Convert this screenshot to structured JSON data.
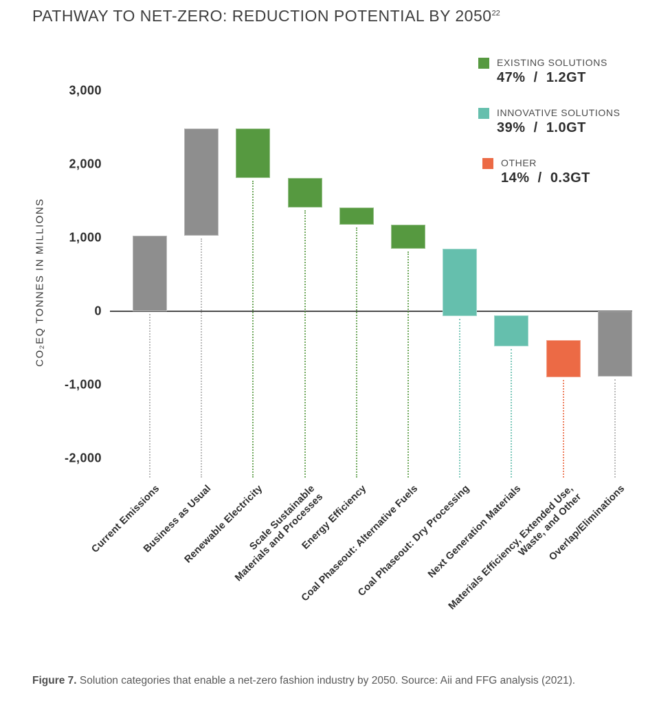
{
  "title": {
    "text": "PATHWAY TO NET-ZERO: REDUCTION POTENTIAL BY 2050",
    "superscript": "22"
  },
  "colors": {
    "existing": "#569940",
    "innovative": "#65BFAD",
    "other": "#EC6A45",
    "neutral": "#8E8E8E",
    "neutral_dots": "#ADADAD",
    "axis": "#4A4A4A"
  },
  "legend": {
    "items": [
      {
        "name": "EXISTING SOLUTIONS",
        "value": "47%  /  1.2GT",
        "color_key": "existing"
      },
      {
        "name": "INNOVATIVE SOLUTIONS",
        "value": "39%  /  1.0GT",
        "color_key": "innovative"
      },
      {
        "name": "OTHER",
        "value": "14%  /  0.3GT",
        "color_key": "other"
      }
    ]
  },
  "y_axis": {
    "label": "CO₂EQ TONNES IN MILLIONS",
    "ticks": [
      "3,000",
      "2,000",
      "1,000",
      "0",
      "-1,000",
      "-2,000"
    ],
    "tick_values": [
      3000,
      2000,
      1000,
      0,
      -1000,
      -2000
    ]
  },
  "chart_data": {
    "type": "bar",
    "subtype": "waterfall",
    "title": "PATHWAY TO NET-ZERO: REDUCTION POTENTIAL BY 2050",
    "ylabel": "CO₂EQ TONNES IN MILLIONS",
    "ylim": [
      -2300,
      3200
    ],
    "grid": false,
    "legend_position": "top-right",
    "groups": {
      "existing": {
        "label": "EXISTING SOLUTIONS",
        "share": "47%",
        "gigatonnes": "1.2GT"
      },
      "innovative": {
        "label": "INNOVATIVE SOLUTIONS",
        "share": "39%",
        "gigatonnes": "1.0GT"
      },
      "other": {
        "label": "OTHER",
        "share": "14%",
        "gigatonnes": "0.3GT"
      }
    },
    "bars": [
      {
        "label": "Current Emissions",
        "label_lines": [
          "Current Emissions"
        ],
        "start": 0,
        "end": 1030,
        "group": "neutral"
      },
      {
        "label": "Business as Usual",
        "label_lines": [
          "Business as Usual"
        ],
        "start": 1030,
        "end": 2490,
        "group": "neutral"
      },
      {
        "label": "Renewable Electricity",
        "label_lines": [
          "Renewable Electricity"
        ],
        "start": 2490,
        "end": 1810,
        "group": "existing"
      },
      {
        "label": "Scale Sustainable Materials and Processes",
        "label_lines": [
          "Scale Sustainable",
          "Materials and Processes"
        ],
        "start": 1810,
        "end": 1410,
        "group": "existing"
      },
      {
        "label": "Energy Efficiency",
        "label_lines": [
          "Energy Efficiency"
        ],
        "start": 1410,
        "end": 1180,
        "group": "existing"
      },
      {
        "label": "Coal Phaseout: Alternative Fuels",
        "label_lines": [
          "Coal Phaseout: Alternative Fuels"
        ],
        "start": 1180,
        "end": 850,
        "group": "existing"
      },
      {
        "label": "Coal Phaseout: Dry Processing",
        "label_lines": [
          "Coal Phaseout: Dry Processing"
        ],
        "start": 850,
        "end": -70,
        "group": "innovative"
      },
      {
        "label": "Next Generation Materials",
        "label_lines": [
          "Next Generation Materials"
        ],
        "start": -60,
        "end": -480,
        "group": "innovative"
      },
      {
        "label": "Materials Efficiency, Extended Use, Waste, and Other",
        "label_lines": [
          "Materials Efficiency, Extended Use,",
          "Waste, and Other"
        ],
        "start": -390,
        "end": -900,
        "group": "other"
      },
      {
        "label": "Overlap/Eliminations",
        "label_lines": [
          "Overlap/Eliminations"
        ],
        "start": 0,
        "end": -890,
        "group": "neutral"
      }
    ]
  },
  "caption": {
    "prefix": "Figure 7.",
    "text": " Solution categories that enable a net-zero fashion industry by 2050. Source: Aii and FFG analysis (2021)."
  }
}
